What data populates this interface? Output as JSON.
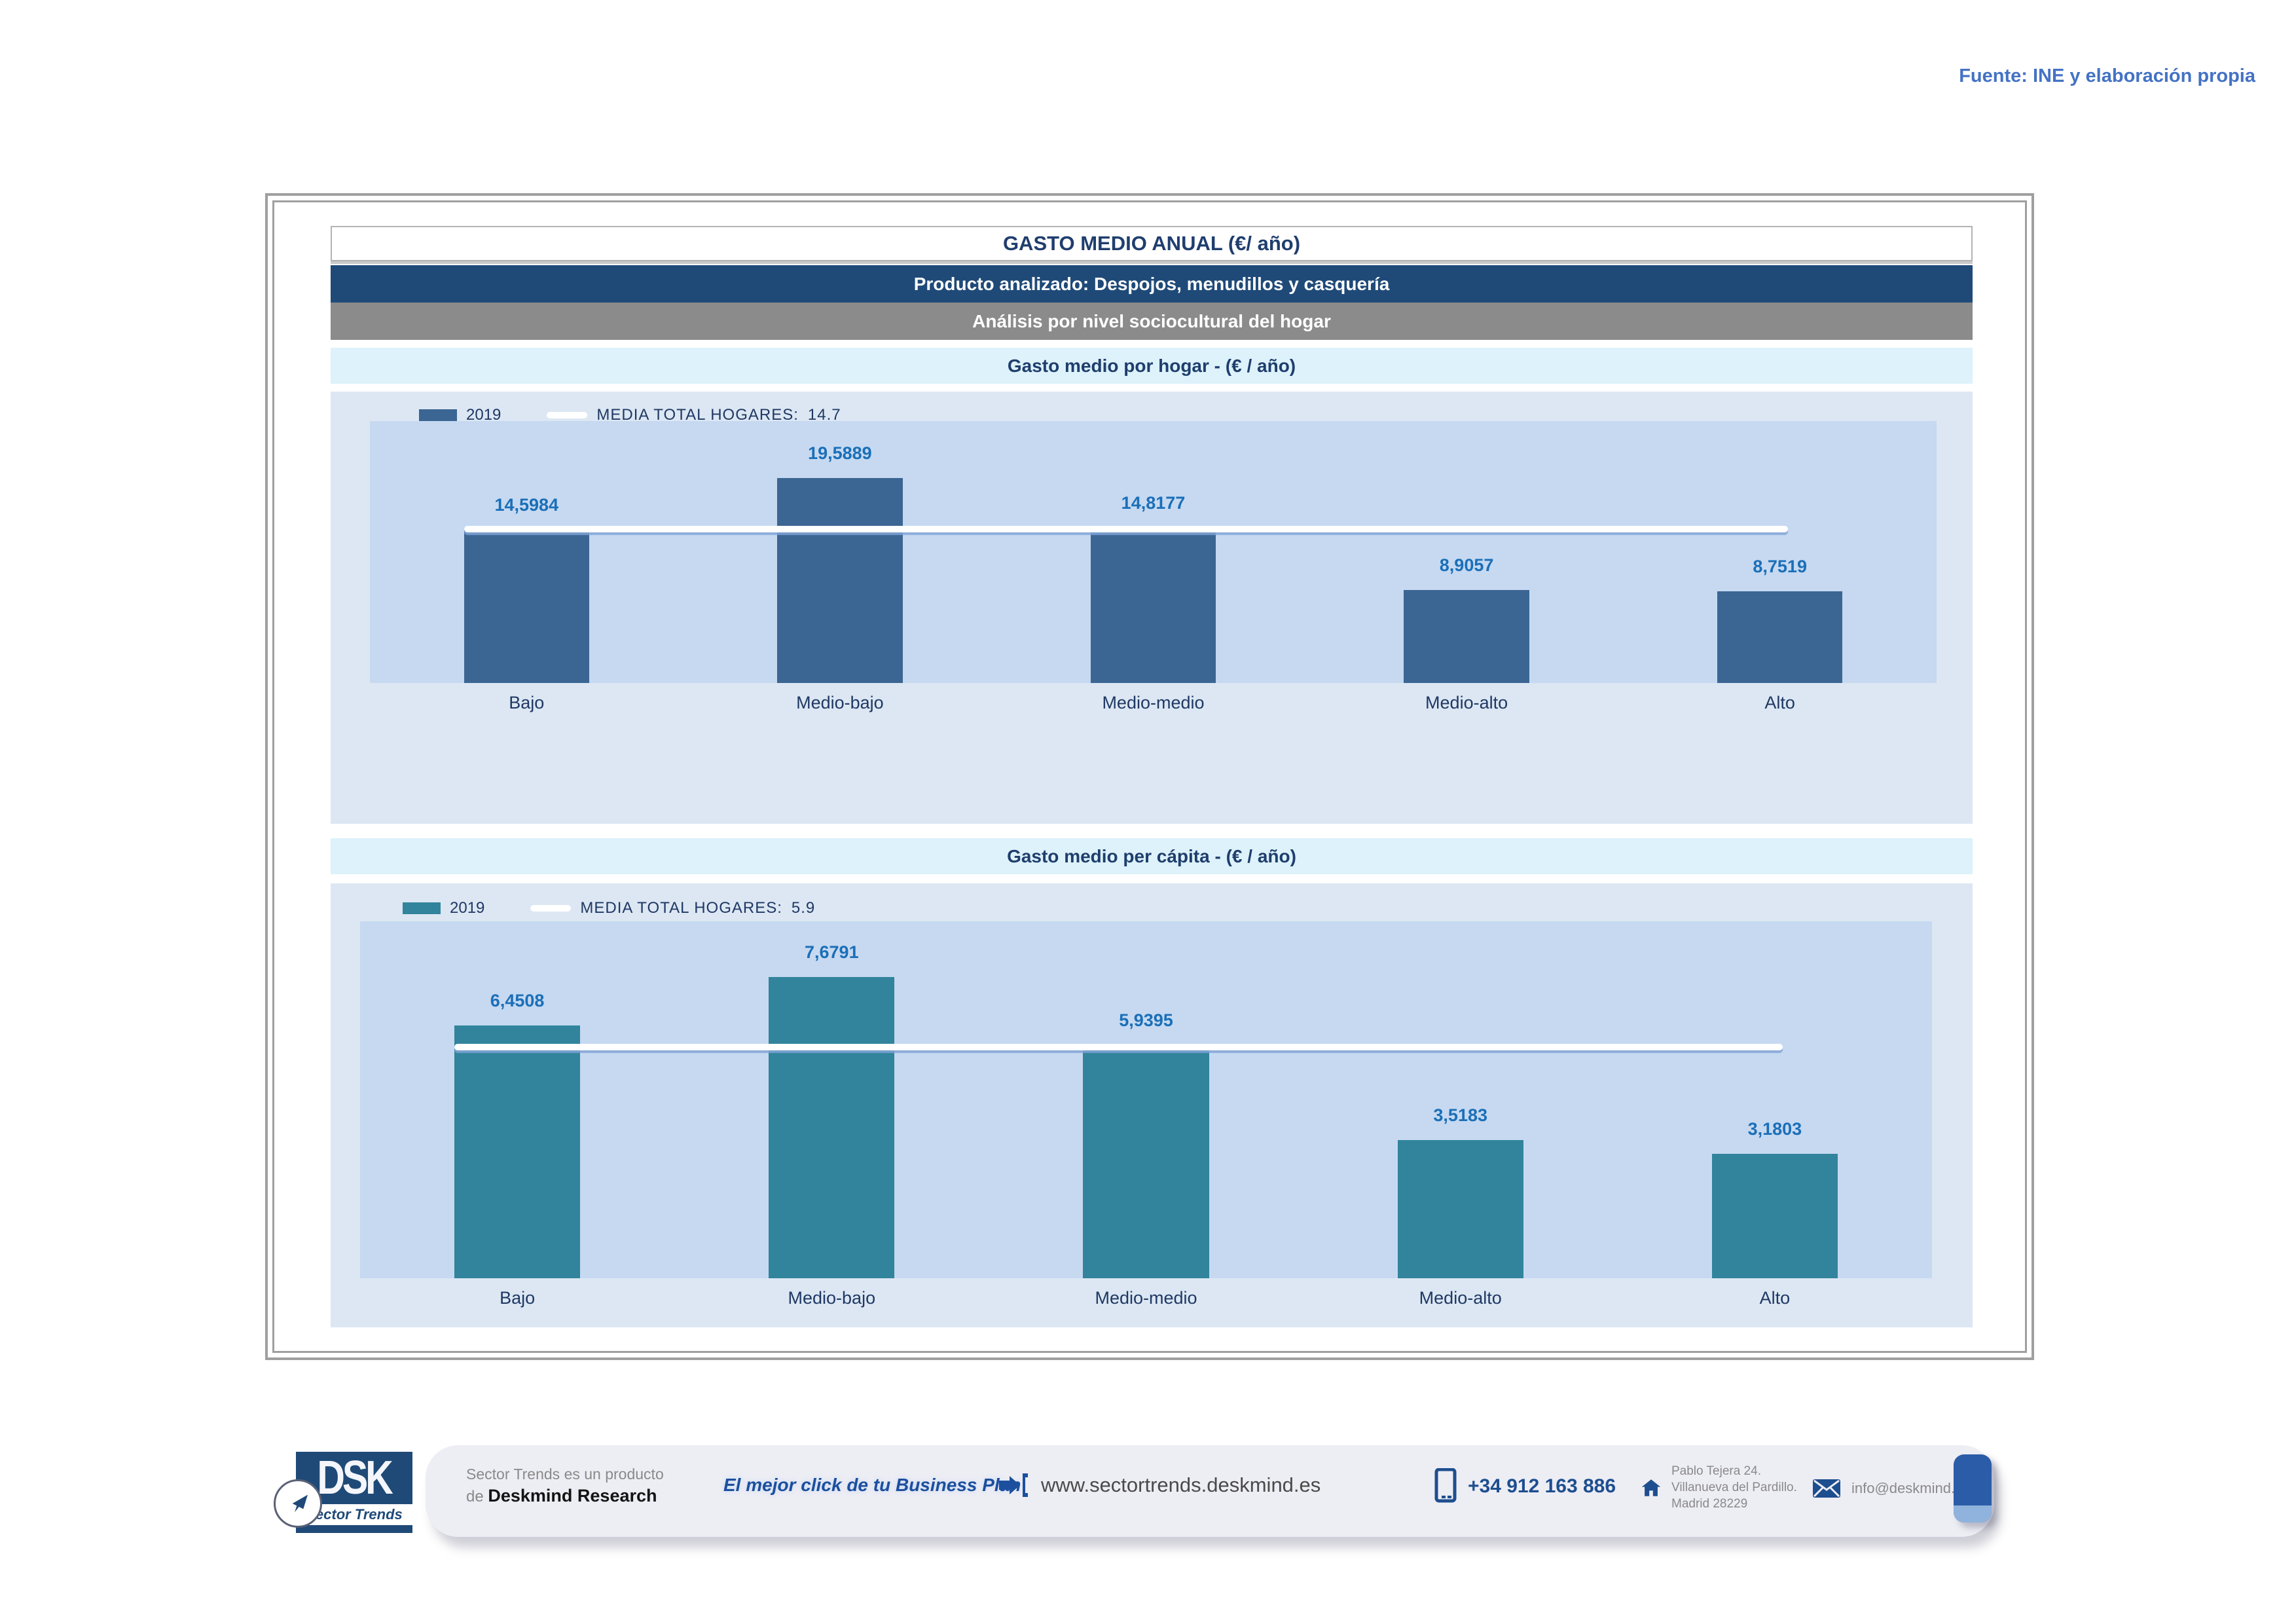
{
  "page": {
    "source_note": "Fuente: INE y elaboración propia"
  },
  "report": {
    "title": "GASTO MEDIO ANUAL (€/ año)",
    "product_line": "Producto analizado: Despojos, menudillos y casquería",
    "analysis_line": "Análisis por nivel sociocultural del hogar"
  },
  "colors": {
    "household_bar": "#3b6593",
    "capita_bar": "#31849b",
    "media_line": "#ffffff",
    "plot_background": "#c6d9f1",
    "chart_background": "#dce7f3",
    "header_blue": "#1f4a78",
    "header_gray": "#8b8b8b",
    "header_cyan": "#ddf2fa",
    "value_label": "#1b6fb8",
    "accent_blue": "#4472c4"
  },
  "chart_data": [
    {
      "type": "bar",
      "title": "Gasto medio por hogar -  (€ / año)",
      "legend": {
        "series_label": "2019",
        "media_label": "MEDIA TOTAL  HOGARES:",
        "media_value": "14.7"
      },
      "categories": [
        "Bajo",
        "Medio-bajo",
        "Medio-medio",
        "Medio-alto",
        "Alto"
      ],
      "values": [
        14.5984,
        19.5889,
        14.8177,
        8.9057,
        8.7519
      ],
      "value_labels": [
        "14,5984",
        "19,5889",
        "14,8177",
        "8,9057",
        "8,7519"
      ],
      "media_total": 14.7,
      "ylim": [
        0,
        25
      ],
      "bar_color": "#3b6593",
      "grid": false,
      "legend_position": "top-left"
    },
    {
      "type": "bar",
      "title": "Gasto medio per cápita -  (€ / año)",
      "legend": {
        "series_label": "2019",
        "media_label": "MEDIA TOTAL  HOGARES:",
        "media_value": "5.9"
      },
      "categories": [
        "Bajo",
        "Medio-bajo",
        "Medio-medio",
        "Medio-alto",
        "Alto"
      ],
      "values": [
        6.4508,
        7.6791,
        5.9395,
        3.5183,
        3.1803
      ],
      "value_labels": [
        "6,4508",
        "7,6791",
        "5,9395",
        "3,5183",
        "3,1803"
      ],
      "media_total": 5.9,
      "ylim": [
        0,
        9.1
      ],
      "bar_color": "#31849b",
      "grid": false,
      "legend_position": "top-left"
    }
  ],
  "footer": {
    "logo": {
      "acronym": "DSK",
      "subtitle": "Sector Trends"
    },
    "product_note_line1": "Sector Trends es un producto",
    "product_note_line2_prefix": "de ",
    "product_note_brand": "Deskmind Research",
    "tagline": "El mejor click de tu Business Plan",
    "website": "www.sectortrends.deskmind.es",
    "phone": "+34 912 163 886",
    "address_lines": [
      "Pablo Tejera 24.",
      "Villanueva del Pardillo.",
      "Madrid 28229"
    ],
    "email": "info@deskmind.es"
  }
}
